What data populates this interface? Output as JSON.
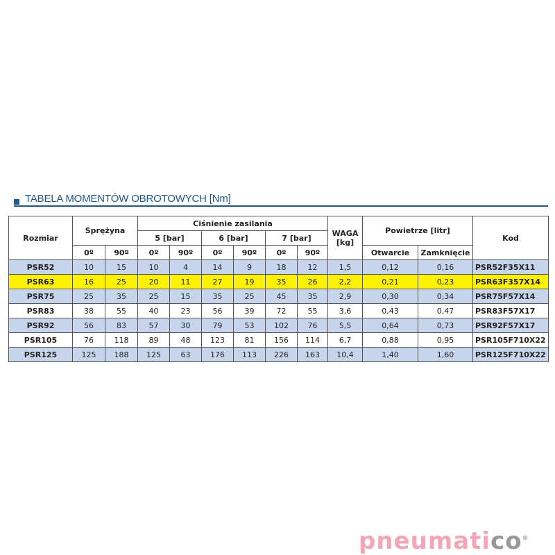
{
  "title": "TABELA MOMENTÓW OBROTOWYCH [Nm]",
  "headers": {
    "size": "Rozmiar",
    "spring": "Sprężyna",
    "pressure": "Ciśnienie zasilania",
    "p5": "5 [bar]",
    "p6": "6 [bar]",
    "p7": "7 [bar]",
    "weight": "WAGA [kg]",
    "air": "Powietrze [litr]",
    "open": "Otwarcie",
    "close": "Zamknięcie",
    "code": "Kod",
    "deg0": "0º",
    "deg90": "90º"
  },
  "rows": [
    [
      "PSR52",
      "10",
      "15",
      "10",
      "4",
      "14",
      "9",
      "18",
      "12",
      "1,5",
      "0,12",
      "0,16",
      "PSR52F35X11"
    ],
    [
      "PSR63",
      "16",
      "25",
      "20",
      "11",
      "27",
      "19",
      "35",
      "26",
      "2,2",
      "0,21",
      "0,23",
      "PSR63F357X14"
    ],
    [
      "PSR75",
      "25",
      "35",
      "25",
      "15",
      "35",
      "25",
      "45",
      "35",
      "2,9",
      "0,30",
      "0,34",
      "PSR75F57X14"
    ],
    [
      "PSR83",
      "38",
      "55",
      "40",
      "23",
      "56",
      "39",
      "72",
      "55",
      "3,6",
      "0,43",
      "0,47",
      "PSR83F57X17"
    ],
    [
      "PSR92",
      "56",
      "83",
      "57",
      "30",
      "79",
      "53",
      "102",
      "76",
      "5,5",
      "0,64",
      "0,73",
      "PSR92F57X17"
    ],
    [
      "PSR105",
      "76",
      "118",
      "89",
      "48",
      "123",
      "81",
      "156",
      "114",
      "6,7",
      "0,88",
      "0,95",
      "PSR105F710X22"
    ],
    [
      "PSR125",
      "125",
      "188",
      "125",
      "63",
      "176",
      "113",
      "226",
      "163",
      "10,4",
      "1,40",
      "1,60",
      "PSR125F710X22"
    ]
  ],
  "row_styles": [
    "blue",
    "yellow",
    "blue",
    "white",
    "blue",
    "white",
    "blue"
  ],
  "colors": {
    "blue_row": "#c7d5ec",
    "highlight": "#fff200",
    "title": "#1e5a8a"
  },
  "logo": {
    "text_pink": "pneumati",
    "text_gray": "co",
    "reg": "®"
  }
}
